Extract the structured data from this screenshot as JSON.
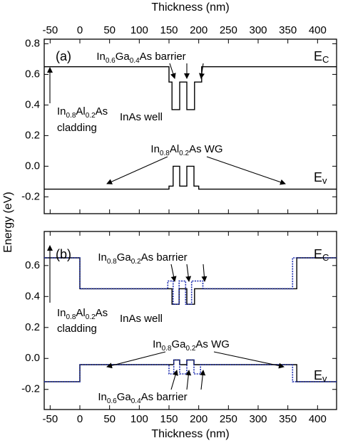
{
  "chart_data": [
    {
      "type": "line",
      "xlabel": "Thickness (nm)",
      "ylabel": "Energy (eV)",
      "xtick_side": "top",
      "xlim": [
        -60,
        432
      ],
      "xticks": [
        -50,
        0,
        50,
        100,
        150,
        200,
        250,
        300,
        350,
        400
      ],
      "ylim": [
        -0.31,
        0.83
      ],
      "yticks": [
        0.8,
        0.6,
        0.4,
        0.2,
        {
          "value": 0,
          "label": "0.0"
        },
        -0.2
      ],
      "series": [
        {
          "color": "#000000",
          "style": "solid",
          "x": [
            -60,
            150,
            150,
            155,
            155,
            168,
            168,
            180,
            180,
            193,
            193,
            205,
            205,
            432
          ],
          "values": [
            0.65,
            0.65,
            0.55,
            0.55,
            0.37,
            0.37,
            0.55,
            0.55,
            0.37,
            0.37,
            0.55,
            0.55,
            0.65,
            0.65
          ]
        },
        {
          "color": "#000000",
          "style": "solid",
          "x": [
            -60,
            150,
            150,
            157,
            157,
            168,
            168,
            180,
            180,
            192,
            192,
            200,
            200,
            432
          ],
          "values": [
            -0.15,
            -0.15,
            -0.13,
            -0.13,
            0,
            0,
            -0.13,
            -0.13,
            0,
            0,
            -0.13,
            -0.13,
            -0.15,
            -0.15
          ]
        }
      ],
      "annotations": [
        {
          "text": [
            "(a)"
          ]
        },
        {
          "text": [
            "E",
            "C"
          ]
        },
        {
          "text": [
            "In",
            "0.6",
            "Ga",
            "0.4",
            "As barrier"
          ]
        },
        {
          "text": [
            "InAs well"
          ]
        },
        {
          "text": [
            "In",
            "0.8",
            "Al",
            "0.2",
            "As"
          ]
        },
        {
          "text": [
            "cladding"
          ]
        },
        {
          "text": [
            "In",
            "0.8",
            "Al",
            "0.2",
            "As WG"
          ]
        },
        {
          "text": [
            "E",
            "v"
          ]
        }
      ]
    },
    {
      "type": "line",
      "xlabel": "Thickness (nm)",
      "xtick_side": "bottom",
      "xlim": [
        -60,
        432
      ],
      "xticks": [
        -50,
        0,
        50,
        100,
        150,
        200,
        250,
        300,
        350,
        400
      ],
      "ylim": [
        -0.33,
        0.82
      ],
      "yticks": [
        0.6,
        0.4,
        0.2,
        {
          "value": 0,
          "label": "0.0"
        },
        -0.2
      ],
      "series": [
        {
          "color": "#000000",
          "style": "solid",
          "x": [
            -60,
            0,
            0,
            155,
            155,
            167,
            167,
            180,
            180,
            193,
            193,
            365,
            365,
            432
          ],
          "values": [
            0.65,
            0.65,
            0.45,
            0.45,
            0.35,
            0.35,
            0.45,
            0.45,
            0.35,
            0.35,
            0.45,
            0.45,
            0.65,
            0.65
          ]
        },
        {
          "color": "#000000",
          "style": "solid",
          "x": [
            -60,
            0,
            0,
            158,
            158,
            168,
            168,
            180,
            180,
            192,
            192,
            365,
            365,
            432
          ],
          "values": [
            -0.15,
            -0.15,
            -0.04,
            -0.04,
            -0.01,
            -0.01,
            -0.04,
            -0.04,
            -0.01,
            -0.01,
            -0.04,
            -0.04,
            -0.15,
            -0.15
          ]
        },
        {
          "color": "#1f2fb0",
          "style": "dotted",
          "x": [
            -60,
            0,
            0,
            148,
            148,
            157,
            157,
            167,
            167,
            178,
            178,
            188,
            188,
            207,
            207,
            358,
            358,
            432
          ],
          "values": [
            0.65,
            0.65,
            0.45,
            0.45,
            0.5,
            0.5,
            0.35,
            0.35,
            0.5,
            0.5,
            0.35,
            0.35,
            0.5,
            0.5,
            0.45,
            0.45,
            0.65,
            0.65
          ]
        },
        {
          "color": "#1f2fb0",
          "style": "dotted",
          "x": [
            -60,
            0,
            0,
            150,
            150,
            158,
            158,
            168,
            168,
            180,
            180,
            192,
            192,
            203,
            203,
            358,
            358,
            432
          ],
          "values": [
            -0.15,
            -0.15,
            -0.04,
            -0.04,
            -0.1,
            -0.1,
            -0.01,
            -0.01,
            -0.1,
            -0.1,
            -0.01,
            -0.01,
            -0.1,
            -0.1,
            -0.04,
            -0.04,
            -0.15,
            -0.15
          ]
        }
      ],
      "annotations": [
        {
          "text": [
            "(b)"
          ]
        },
        {
          "text": [
            "E",
            "C"
          ]
        },
        {
          "text": [
            "In",
            "0.8",
            "Ga",
            "0.2",
            "As barrier"
          ]
        },
        {
          "text": [
            "InAs well"
          ]
        },
        {
          "text": [
            "In",
            "0.8",
            "Al",
            "0.2",
            "As"
          ]
        },
        {
          "text": [
            "cladding"
          ]
        },
        {
          "text": [
            "In",
            "0.8",
            "Ga",
            "0.2",
            "As WG"
          ]
        },
        {
          "text": [
            "E",
            "v"
          ]
        },
        {
          "text": [
            "In",
            "0.6",
            "Ga",
            "0.4",
            "As barrier"
          ]
        }
      ]
    }
  ]
}
